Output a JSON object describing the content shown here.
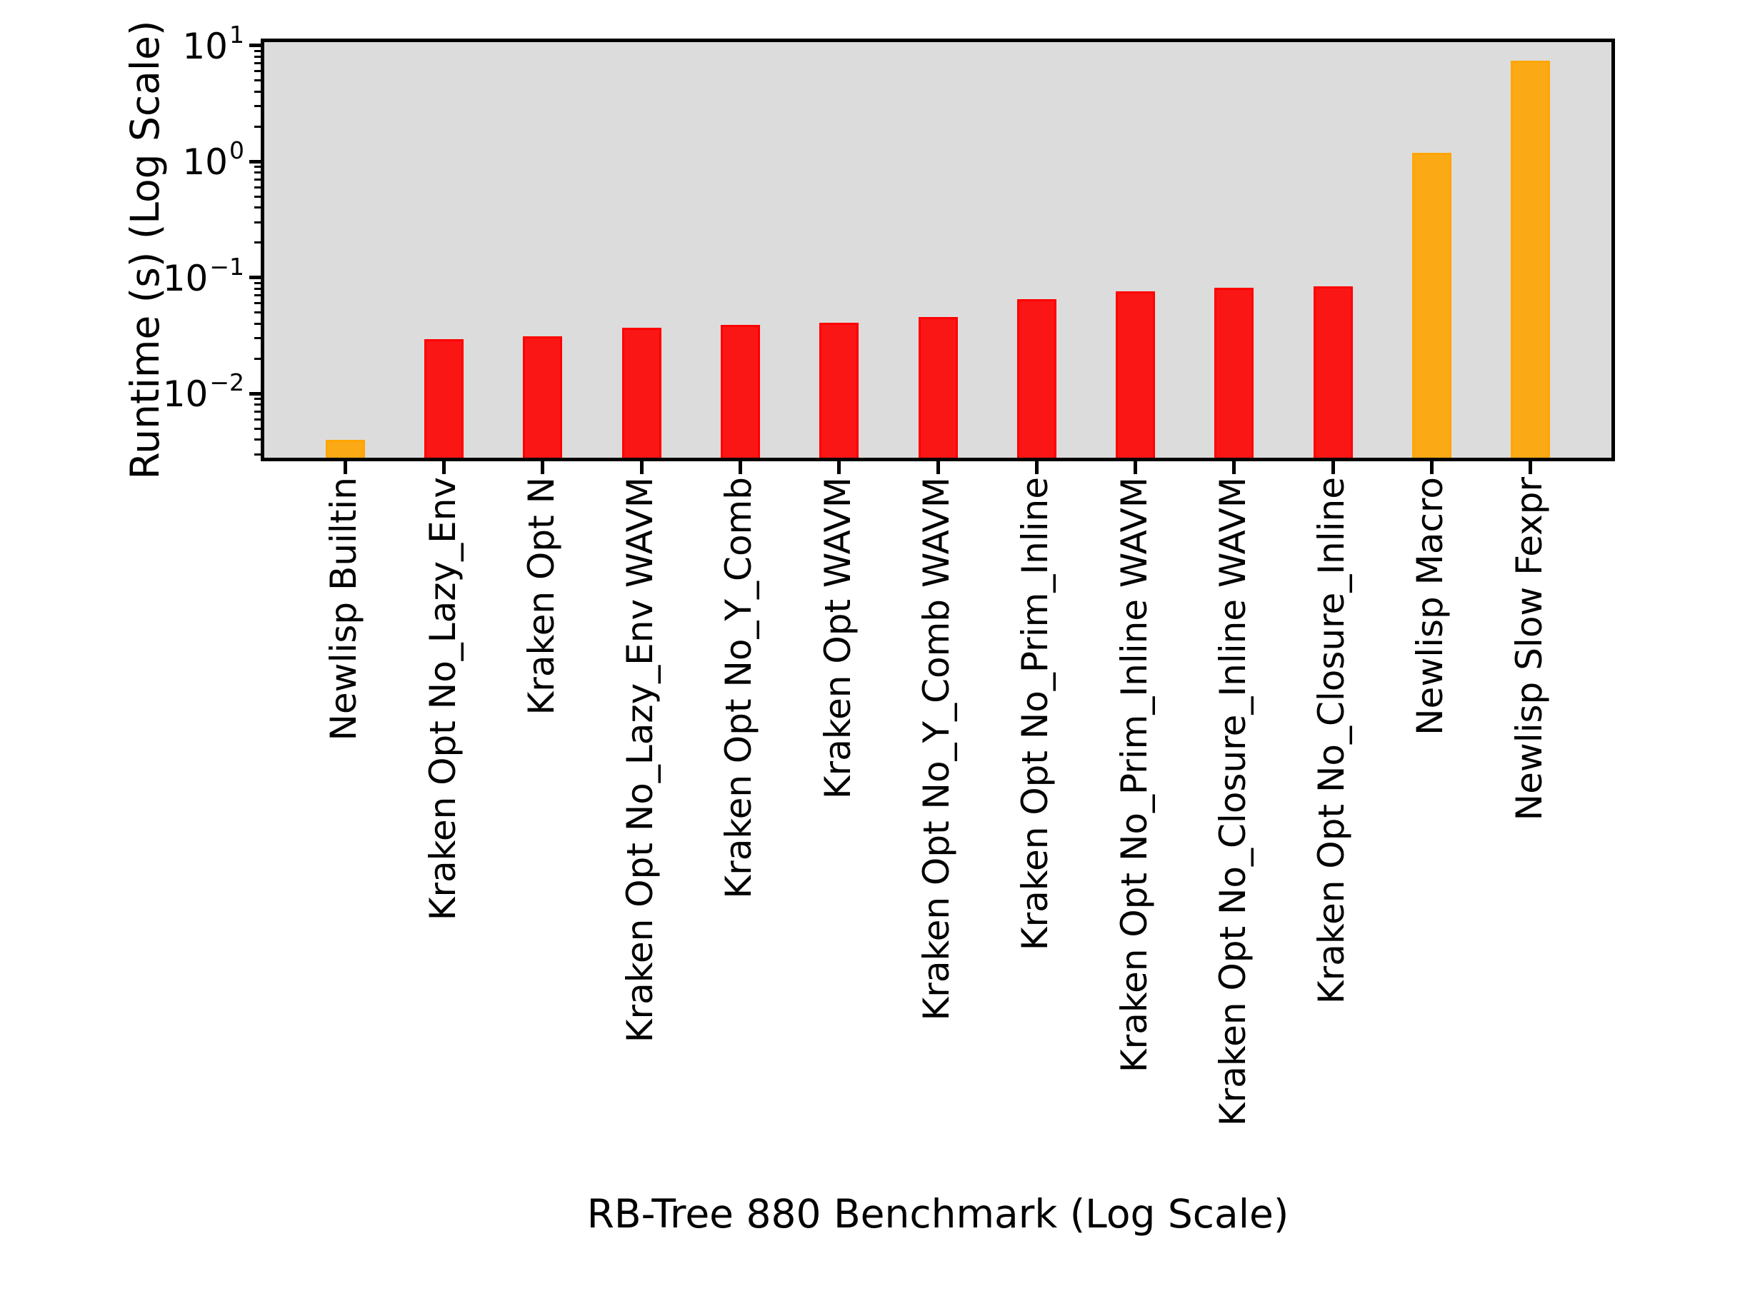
{
  "chart_data": {
    "type": "bar",
    "title": "",
    "xlabel": "RB-Tree 880 Benchmark (Log Scale)",
    "ylabel": "Runtime (s) (Log Scale)",
    "y_scale": "log",
    "ylim": [
      0.0028,
      10.7
    ],
    "grid": false,
    "legend_position": "upper right",
    "categories": [
      "Newlisp Builtin",
      "Kraken Opt No_Lazy_Env",
      "Kraken Opt N",
      "Kraken Opt No_Lazy_Env WAVM",
      "Kraken Opt No_Y_Comb",
      "Kraken Opt WAVM",
      "Kraken Opt No_Y_Comb WAVM",
      "Kraken Opt No_Prim_Inline",
      "Kraken Opt No_Prim_Inline WAVM",
      "Kraken Opt No_Closure_Inline WAVM",
      "Kraken Opt No_Closure_Inline",
      "Newlisp Macro",
      "Newlisp Slow Fexpr"
    ],
    "values": [
      0.004,
      0.0295,
      0.031,
      0.037,
      0.039,
      0.0405,
      0.046,
      0.065,
      0.076,
      0.0815,
      0.0845,
      1.19,
      7.4
    ],
    "bar_groups": [
      "newlisp",
      "kraken",
      "kraken",
      "kraken",
      "kraken",
      "kraken",
      "kraken",
      "kraken",
      "kraken",
      "kraken",
      "kraken",
      "newlisp",
      "newlisp"
    ],
    "palette": {
      "kraken": {
        "fill": "#fb1616",
        "edge": "#ff0000"
      },
      "newlisp": {
        "fill": "#fbaa16",
        "edge": "#ffa500"
      }
    },
    "y_tick_labels": [
      {
        "base": "10",
        "exp": "1"
      },
      {
        "base": "10",
        "exp": "0"
      },
      {
        "base": "10",
        "exp": "−1"
      },
      {
        "base": "10",
        "exp": "−2"
      }
    ],
    "y_tick_exponents": [
      1,
      0,
      -1,
      -2
    ],
    "plot_bg": "#dcdcdc",
    "frame_color": "#000000",
    "legend_box": {
      "visible": true,
      "entries": []
    }
  }
}
